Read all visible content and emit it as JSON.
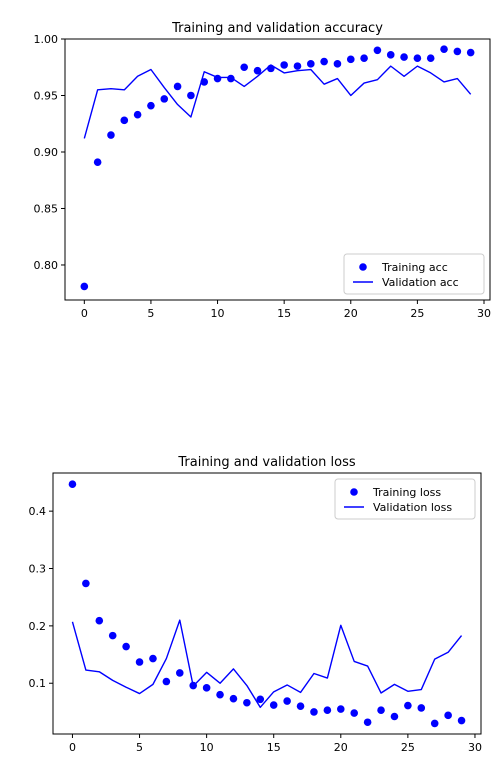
{
  "chart_data": [
    {
      "type": "scatter+line",
      "title": "Training and validation accuracy",
      "xlabel": "",
      "ylabel": "",
      "xlim": [
        -1.45,
        30.45
      ],
      "ylim": [
        0.769,
        1.0
      ],
      "xticks": [
        0,
        5,
        10,
        15,
        20,
        25,
        30
      ],
      "yticks": [
        0.8,
        0.85,
        0.9,
        0.95,
        1.0
      ],
      "ytick_labels": [
        "0.80",
        "0.85",
        "0.90",
        "0.95",
        "1.00"
      ],
      "grid": false,
      "legend_position": "lower-right",
      "series": [
        {
          "name": "Training acc",
          "style": "dots",
          "color": "#0000ff",
          "x": [
            0,
            1,
            2,
            3,
            4,
            5,
            6,
            7,
            8,
            9,
            10,
            11,
            12,
            13,
            14,
            15,
            16,
            17,
            18,
            19,
            20,
            21,
            22,
            23,
            24,
            25,
            26,
            27,
            28,
            29
          ],
          "values": [
            0.781,
            0.891,
            0.915,
            0.928,
            0.933,
            0.941,
            0.947,
            0.958,
            0.95,
            0.962,
            0.965,
            0.965,
            0.975,
            0.972,
            0.974,
            0.977,
            0.976,
            0.978,
            0.98,
            0.978,
            0.982,
            0.983,
            0.99,
            0.986,
            0.984,
            0.983,
            0.983,
            0.991,
            0.989,
            0.988
          ]
        },
        {
          "name": "Validation acc",
          "style": "line",
          "color": "#0000ff",
          "x": [
            0,
            1,
            2,
            3,
            4,
            5,
            6,
            7,
            8,
            9,
            10,
            11,
            12,
            13,
            14,
            15,
            16,
            17,
            18,
            19,
            20,
            21,
            22,
            23,
            24,
            25,
            26,
            27,
            28,
            29
          ],
          "values": [
            0.912,
            0.955,
            0.956,
            0.955,
            0.967,
            0.973,
            0.957,
            0.942,
            0.931,
            0.971,
            0.966,
            0.966,
            0.958,
            0.967,
            0.977,
            0.97,
            0.972,
            0.973,
            0.96,
            0.965,
            0.95,
            0.961,
            0.964,
            0.976,
            0.967,
            0.976,
            0.97,
            0.962,
            0.965,
            0.951
          ]
        }
      ]
    },
    {
      "type": "scatter+line",
      "title": "Training and validation loss",
      "xlabel": "",
      "ylabel": "",
      "xlim": [
        -1.45,
        30.45
      ],
      "ylim": [
        0.0115,
        0.4665
      ],
      "xticks": [
        0,
        5,
        10,
        15,
        20,
        25,
        30
      ],
      "yticks": [
        0.1,
        0.2,
        0.3,
        0.4
      ],
      "ytick_labels": [
        "0.1",
        "0.2",
        "0.3",
        "0.4"
      ],
      "grid": false,
      "legend_position": "top-right",
      "series": [
        {
          "name": "Training loss",
          "style": "dots",
          "color": "#0000ff",
          "x": [
            0,
            1,
            2,
            3,
            4,
            5,
            6,
            7,
            8,
            9,
            10,
            11,
            12,
            13,
            14,
            15,
            16,
            17,
            18,
            19,
            20,
            21,
            22,
            23,
            24,
            25,
            26,
            27,
            28,
            29
          ],
          "values": [
            0.447,
            0.274,
            0.209,
            0.183,
            0.164,
            0.137,
            0.143,
            0.103,
            0.118,
            0.096,
            0.092,
            0.08,
            0.073,
            0.066,
            0.072,
            0.062,
            0.069,
            0.06,
            0.05,
            0.053,
            0.055,
            0.048,
            0.032,
            0.053,
            0.042,
            0.061,
            0.057,
            0.03,
            0.044,
            0.035
          ]
        },
        {
          "name": "Validation loss",
          "style": "line",
          "color": "#0000ff",
          "x": [
            0,
            1,
            2,
            3,
            4,
            5,
            6,
            7,
            8,
            9,
            10,
            11,
            12,
            13,
            14,
            15,
            16,
            17,
            18,
            19,
            20,
            21,
            22,
            23,
            24,
            25,
            26,
            27,
            28,
            29
          ],
          "values": [
            0.207,
            0.123,
            0.12,
            0.105,
            0.093,
            0.082,
            0.098,
            0.143,
            0.21,
            0.095,
            0.119,
            0.1,
            0.125,
            0.096,
            0.058,
            0.085,
            0.097,
            0.084,
            0.117,
            0.109,
            0.201,
            0.138,
            0.13,
            0.083,
            0.098,
            0.086,
            0.089,
            0.142,
            0.154,
            0.183
          ]
        }
      ]
    }
  ]
}
